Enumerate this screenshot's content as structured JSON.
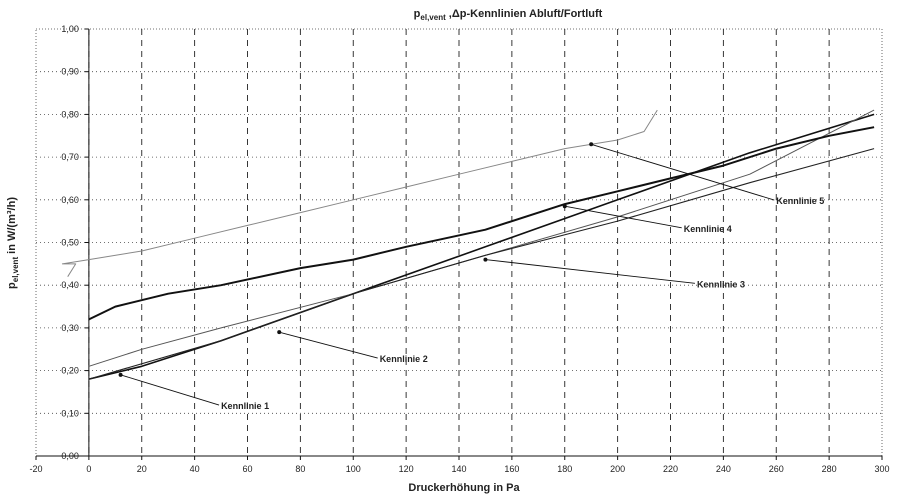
{
  "chart_data": {
    "type": "line",
    "title": "pₑₗ,vent ,Δp-Kennlinien Abluft/Fortluft",
    "title_main": "pel,vent ,Δp-Kennlinien Abluft/Fortluft",
    "xlabel": "Druckerhöhung in Pa",
    "ylabel": "pel,vent in W/(m³/h)",
    "xlim": [
      -20,
      300
    ],
    "ylim": [
      0.0,
      1.0
    ],
    "x_ticks": [
      "-20",
      "0",
      "20",
      "40",
      "60",
      "80",
      "100",
      "120",
      "140",
      "160",
      "180",
      "200",
      "220",
      "240",
      "260",
      "280",
      "300"
    ],
    "y_ticks": [
      "0,00",
      "0,10",
      "0,20",
      "0,30",
      "0,40",
      "0,50",
      "0,60",
      "0,70",
      "0,80",
      "0,90",
      "1,00"
    ],
    "grid": true,
    "series": [
      {
        "name": "Kennlinie 1",
        "color": "#111111",
        "x": [
          0,
          20,
          50,
          100,
          150,
          200,
          250,
          297
        ],
        "y": [
          0.18,
          0.21,
          0.27,
          0.38,
          0.49,
          0.6,
          0.71,
          0.8
        ]
      },
      {
        "name": "Kennlinie 2",
        "color": "#555555",
        "x": [
          0,
          20,
          50,
          100,
          150,
          200,
          250,
          297
        ],
        "y": [
          0.21,
          0.25,
          0.3,
          0.38,
          0.47,
          0.56,
          0.66,
          0.81
        ]
      },
      {
        "name": "Kennlinie 3",
        "color": "#222222",
        "x": [
          0,
          50,
          100,
          150,
          200,
          250,
          297
        ],
        "y": [
          0.18,
          0.27,
          0.38,
          0.47,
          0.55,
          0.64,
          0.72
        ]
      },
      {
        "name": "Kennlinie 4",
        "color": "#111111",
        "x": [
          0,
          10,
          30,
          50,
          80,
          100,
          120,
          150,
          180,
          200,
          220,
          240,
          260,
          280,
          297
        ],
        "y": [
          0.32,
          0.35,
          0.38,
          0.4,
          0.44,
          0.46,
          0.49,
          0.53,
          0.59,
          0.62,
          0.65,
          0.68,
          0.72,
          0.75,
          0.77
        ]
      },
      {
        "name": "Kennlinie 5",
        "color": "#888888",
        "x": [
          -8,
          -5,
          -10,
          0,
          20,
          40,
          60,
          80,
          100,
          120,
          140,
          160,
          180,
          200,
          210,
          215
        ],
        "y": [
          0.42,
          0.45,
          0.45,
          0.46,
          0.48,
          0.51,
          0.54,
          0.57,
          0.6,
          0.63,
          0.66,
          0.69,
          0.72,
          0.74,
          0.76,
          0.81
        ]
      }
    ],
    "annotations": [
      {
        "text": "Kennlinie 1",
        "point": [
          12,
          0.19
        ],
        "label_at": [
          50,
          0.11
        ]
      },
      {
        "text": "Kennlinie 2",
        "point": [
          72,
          0.29
        ],
        "label_at": [
          110,
          0.22
        ]
      },
      {
        "text": "Kennlinie 3",
        "point": [
          150,
          0.46
        ],
        "label_at": [
          230,
          0.395
        ]
      },
      {
        "text": "Kennlinie 4",
        "point": [
          180,
          0.585
        ],
        "label_at": [
          225,
          0.525
        ]
      },
      {
        "text": "Kennlinie 5",
        "point": [
          190,
          0.73
        ],
        "label_at": [
          260,
          0.59
        ]
      }
    ]
  }
}
